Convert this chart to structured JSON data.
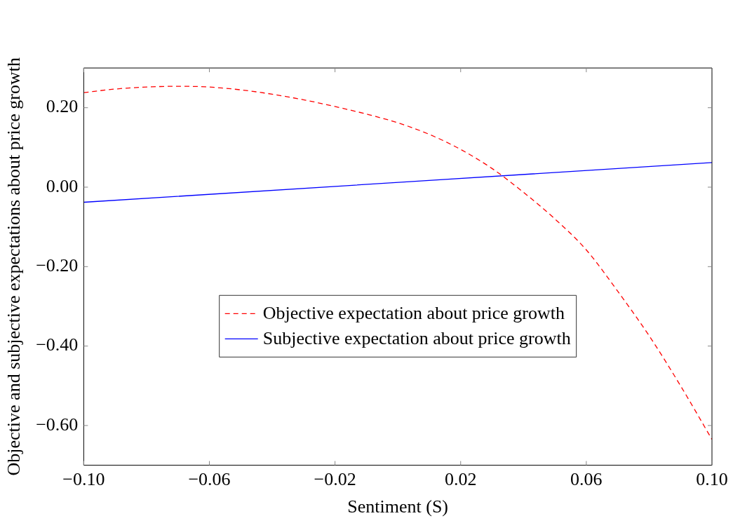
{
  "chart_data": {
    "type": "line",
    "xlabel": "Sentiment (S)",
    "ylabel": "Objective and subjective expectations about price growth",
    "xlim": [
      -0.1,
      0.1
    ],
    "ylim": [
      -0.7,
      0.3
    ],
    "xticks": [
      {
        "value": -0.1,
        "label": "−0.10"
      },
      {
        "value": -0.06,
        "label": "−0.06"
      },
      {
        "value": -0.02,
        "label": "−0.02"
      },
      {
        "value": 0.02,
        "label": "0.02"
      },
      {
        "value": 0.06,
        "label": "0.06"
      },
      {
        "value": 0.1,
        "label": "0.10"
      }
    ],
    "yticks": [
      {
        "value": 0.2,
        "label": "0.20"
      },
      {
        "value": 0,
        "label": "0.00"
      },
      {
        "value": -0.2,
        "label": "−0.20"
      },
      {
        "value": -0.4,
        "label": "−0.40"
      },
      {
        "value": -0.6,
        "label": "−0.60"
      }
    ],
    "grid": false,
    "legend": "center",
    "marker": "none",
    "series": [
      {
        "name": "Objective expectation about price growth",
        "color": "#ff0000",
        "line_style": "dashed",
        "x": [
          -0.1,
          -0.09,
          -0.08,
          -0.07,
          -0.06,
          -0.05,
          -0.04,
          -0.03,
          -0.02,
          -0.01,
          0,
          0.01,
          0.02,
          0.03,
          0.04,
          0.05,
          0.06,
          0.07,
          0.08,
          0.09,
          0.1
        ],
        "values": [
          0.238,
          0.247,
          0.252,
          0.254,
          0.252,
          0.245,
          0.234,
          0.22,
          0.203,
          0.184,
          0.162,
          0.133,
          0.095,
          0.047,
          -0.013,
          -0.08,
          -0.158,
          -0.262,
          -0.374,
          -0.5,
          -0.635
        ]
      },
      {
        "name": "Subjective expectation about price growth",
        "color": "#0000ff",
        "line_style": "solid",
        "x": [
          -0.1,
          0.1
        ],
        "values": [
          -0.038,
          0.062
        ]
      }
    ]
  }
}
